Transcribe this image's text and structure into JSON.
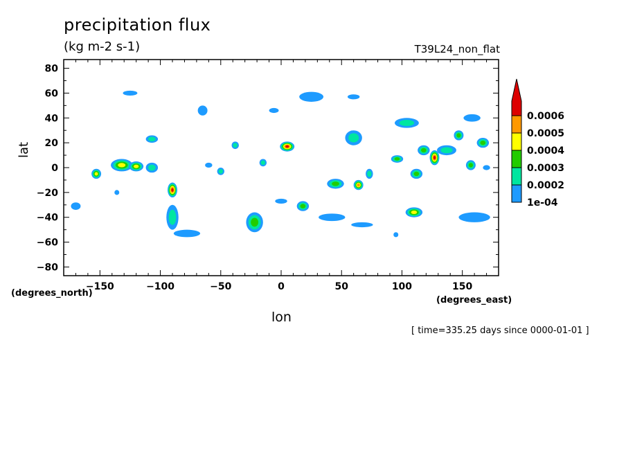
{
  "header": {
    "title": "precipitation flux",
    "units": "(kg m-2 s-1)",
    "run_label": "T39L24_non_flat"
  },
  "axes": {
    "xlabel": "lon",
    "ylabel": "lat",
    "x_units": "(degrees_east)",
    "y_units": "(degrees_north)"
  },
  "footer": {
    "timestamp": "[ time=335.25 days since 0000-01-01 ]"
  },
  "colors": {
    "level_1": "#1e9bff",
    "level_2": "#00e6a0",
    "level_3": "#22cc00",
    "level_4": "#ffff00",
    "level_5": "#ff9900",
    "level_6": "#dd0000"
  },
  "chart_data": {
    "type": "heatmap",
    "title": "precipitation flux",
    "subtitle": "(kg m-2 s-1)",
    "xlabel": "lon",
    "ylabel": "lat",
    "xlim": [
      -180,
      180
    ],
    "ylim": [
      -87,
      87
    ],
    "x_ticks": [
      -150,
      -100,
      -50,
      0,
      50,
      100,
      150
    ],
    "y_ticks": [
      -80,
      -60,
      -40,
      -20,
      0,
      20,
      40,
      60,
      80
    ],
    "x_tick_labels": [
      "−150",
      "−100",
      "−50",
      "0",
      "50",
      "100",
      "150"
    ],
    "y_tick_labels": [
      "−80",
      "−60",
      "−40",
      "−20",
      "0",
      "20",
      "40",
      "60",
      "80"
    ],
    "colorbar": {
      "levels": [
        0.0001,
        0.0002,
        0.0003,
        0.0004,
        0.0005,
        0.0006
      ],
      "labels": [
        "1e-04",
        "0.0002",
        "0.0003",
        "0.0004",
        "0.0005",
        "0.0006"
      ],
      "colors": [
        "#1e9bff",
        "#00e6a0",
        "#22cc00",
        "#ffff00",
        "#ff9900",
        "#dd0000"
      ],
      "extend": "max"
    },
    "features": [
      {
        "lon": 5,
        "lat": 17,
        "rx": 6,
        "ry": 4,
        "level": 6
      },
      {
        "lon": -90,
        "lat": -18,
        "rx": 4,
        "ry": 6,
        "level": 6
      },
      {
        "lon": 127,
        "lat": 8,
        "rx": 4,
        "ry": 6,
        "level": 6
      },
      {
        "lon": 64,
        "lat": -14,
        "rx": 4,
        "ry": 4,
        "level": 5
      },
      {
        "lon": -132,
        "lat": 2,
        "rx": 9,
        "ry": 5,
        "level": 4
      },
      {
        "lon": -120,
        "lat": 1,
        "rx": 6,
        "ry": 4,
        "level": 4
      },
      {
        "lon": -153,
        "lat": -5,
        "rx": 4,
        "ry": 4,
        "level": 4
      },
      {
        "lon": -22,
        "lat": -44,
        "rx": 7,
        "ry": 8,
        "level": 3
      },
      {
        "lon": 110,
        "lat": -36,
        "rx": 7,
        "ry": 4,
        "level": 4
      },
      {
        "lon": 112,
        "lat": -5,
        "rx": 5,
        "ry": 4,
        "level": 3
      },
      {
        "lon": 157,
        "lat": 2,
        "rx": 4,
        "ry": 4,
        "level": 3
      },
      {
        "lon": 167,
        "lat": 20,
        "rx": 5,
        "ry": 4,
        "level": 3
      },
      {
        "lon": 147,
        "lat": 26,
        "rx": 4,
        "ry": 4,
        "level": 3
      },
      {
        "lon": 96,
        "lat": 7,
        "rx": 5,
        "ry": 3,
        "level": 3
      },
      {
        "lon": 45,
        "lat": -13,
        "rx": 7,
        "ry": 4,
        "level": 3
      },
      {
        "lon": 18,
        "lat": -31,
        "rx": 5,
        "ry": 4,
        "level": 3
      },
      {
        "lon": 60,
        "lat": 24,
        "rx": 7,
        "ry": 6,
        "level": 2
      },
      {
        "lon": 104,
        "lat": 36,
        "rx": 10,
        "ry": 4,
        "level": 2
      },
      {
        "lon": 118,
        "lat": 14,
        "rx": 5,
        "ry": 4,
        "level": 3
      },
      {
        "lon": 137,
        "lat": 14,
        "rx": 8,
        "ry": 4,
        "level": 2
      },
      {
        "lon": -107,
        "lat": 23,
        "rx": 5,
        "ry": 3,
        "level": 2
      },
      {
        "lon": -107,
        "lat": 0,
        "rx": 5,
        "ry": 4,
        "level": 2
      },
      {
        "lon": -90,
        "lat": -40,
        "rx": 5,
        "ry": 10,
        "level": 2
      },
      {
        "lon": -50,
        "lat": -3,
        "rx": 3,
        "ry": 3,
        "level": 2
      },
      {
        "lon": -38,
        "lat": 18,
        "rx": 3,
        "ry": 3,
        "level": 2
      },
      {
        "lon": -15,
        "lat": 4,
        "rx": 3,
        "ry": 3,
        "level": 2
      },
      {
        "lon": 73,
        "lat": -5,
        "rx": 3,
        "ry": 4,
        "level": 2
      },
      {
        "lon": -65,
        "lat": 46,
        "rx": 4,
        "ry": 4,
        "level": 1
      },
      {
        "lon": 25,
        "lat": 57,
        "rx": 10,
        "ry": 4,
        "level": 1
      },
      {
        "lon": 60,
        "lat": 57,
        "rx": 5,
        "ry": 2,
        "level": 1
      },
      {
        "lon": -125,
        "lat": 60,
        "rx": 6,
        "ry": 2,
        "level": 1
      },
      {
        "lon": -6,
        "lat": 46,
        "rx": 4,
        "ry": 2,
        "level": 1
      },
      {
        "lon": 158,
        "lat": 40,
        "rx": 7,
        "ry": 3,
        "level": 1
      },
      {
        "lon": -170,
        "lat": -31,
        "rx": 4,
        "ry": 3,
        "level": 1
      },
      {
        "lon": -78,
        "lat": -53,
        "rx": 11,
        "ry": 3,
        "level": 1
      },
      {
        "lon": 42,
        "lat": -40,
        "rx": 11,
        "ry": 3,
        "level": 1
      },
      {
        "lon": 67,
        "lat": -46,
        "rx": 9,
        "ry": 2,
        "level": 1
      },
      {
        "lon": 160,
        "lat": -40,
        "rx": 13,
        "ry": 4,
        "level": 1
      },
      {
        "lon": -60,
        "lat": 2,
        "rx": 3,
        "ry": 2,
        "level": 1
      },
      {
        "lon": -136,
        "lat": -20,
        "rx": 2,
        "ry": 2,
        "level": 1
      },
      {
        "lon": 95,
        "lat": -54,
        "rx": 2,
        "ry": 2,
        "level": 1
      },
      {
        "lon": 0,
        "lat": -27,
        "rx": 5,
        "ry": 2,
        "level": 1
      },
      {
        "lon": 170,
        "lat": 0,
        "rx": 3,
        "ry": 2,
        "level": 1
      }
    ]
  }
}
